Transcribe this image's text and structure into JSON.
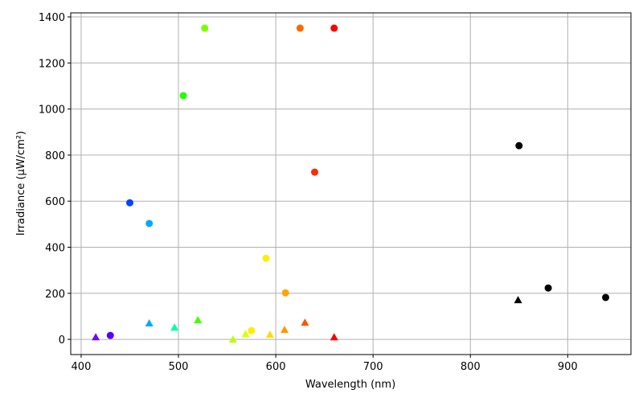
{
  "chart_data": {
    "type": "scatter",
    "xlabel": "Wavelength (nm)",
    "ylabel": "Irradiance (μW/cm²)",
    "xlim": [
      389.3,
      965
    ],
    "ylim": [
      -66,
      1417.5
    ],
    "xticks": [
      400,
      500,
      600,
      700,
      800,
      900
    ],
    "yticks": [
      0,
      200,
      400,
      600,
      800,
      1000,
      1200,
      1400
    ],
    "grid": true,
    "series": [
      {
        "marker": "circle",
        "x": [
          430,
          450,
          470,
          505,
          527,
          575,
          590,
          610,
          625,
          640,
          660,
          850,
          880,
          939
        ],
        "values": [
          17,
          593,
          503,
          1058,
          1351,
          38,
          352,
          202,
          1351,
          726,
          1351,
          841,
          223,
          182
        ],
        "colors": [
          "#5500ff",
          "#0044ff",
          "#00aaff",
          "#22ff00",
          "#77ff00",
          "#ffee00",
          "#ffee00",
          "#ffa500",
          "#ff6600",
          "#ff2a00",
          "#ff0000",
          "#000000",
          "#000000",
          "#000000"
        ]
      },
      {
        "marker": "triangle",
        "x": [
          415,
          470,
          496,
          520,
          556,
          569,
          594,
          609,
          630,
          660,
          849
        ],
        "values": [
          10,
          70,
          52,
          84,
          0,
          24,
          21,
          42,
          73,
          10,
          171
        ],
        "colors": [
          "#7700ff",
          "#00aaff",
          "#00ffaa",
          "#44ff00",
          "#bbff00",
          "#ddff00",
          "#ffdd00",
          "#ff9900",
          "#ff5500",
          "#ff0000",
          "#000000"
        ]
      }
    ]
  }
}
